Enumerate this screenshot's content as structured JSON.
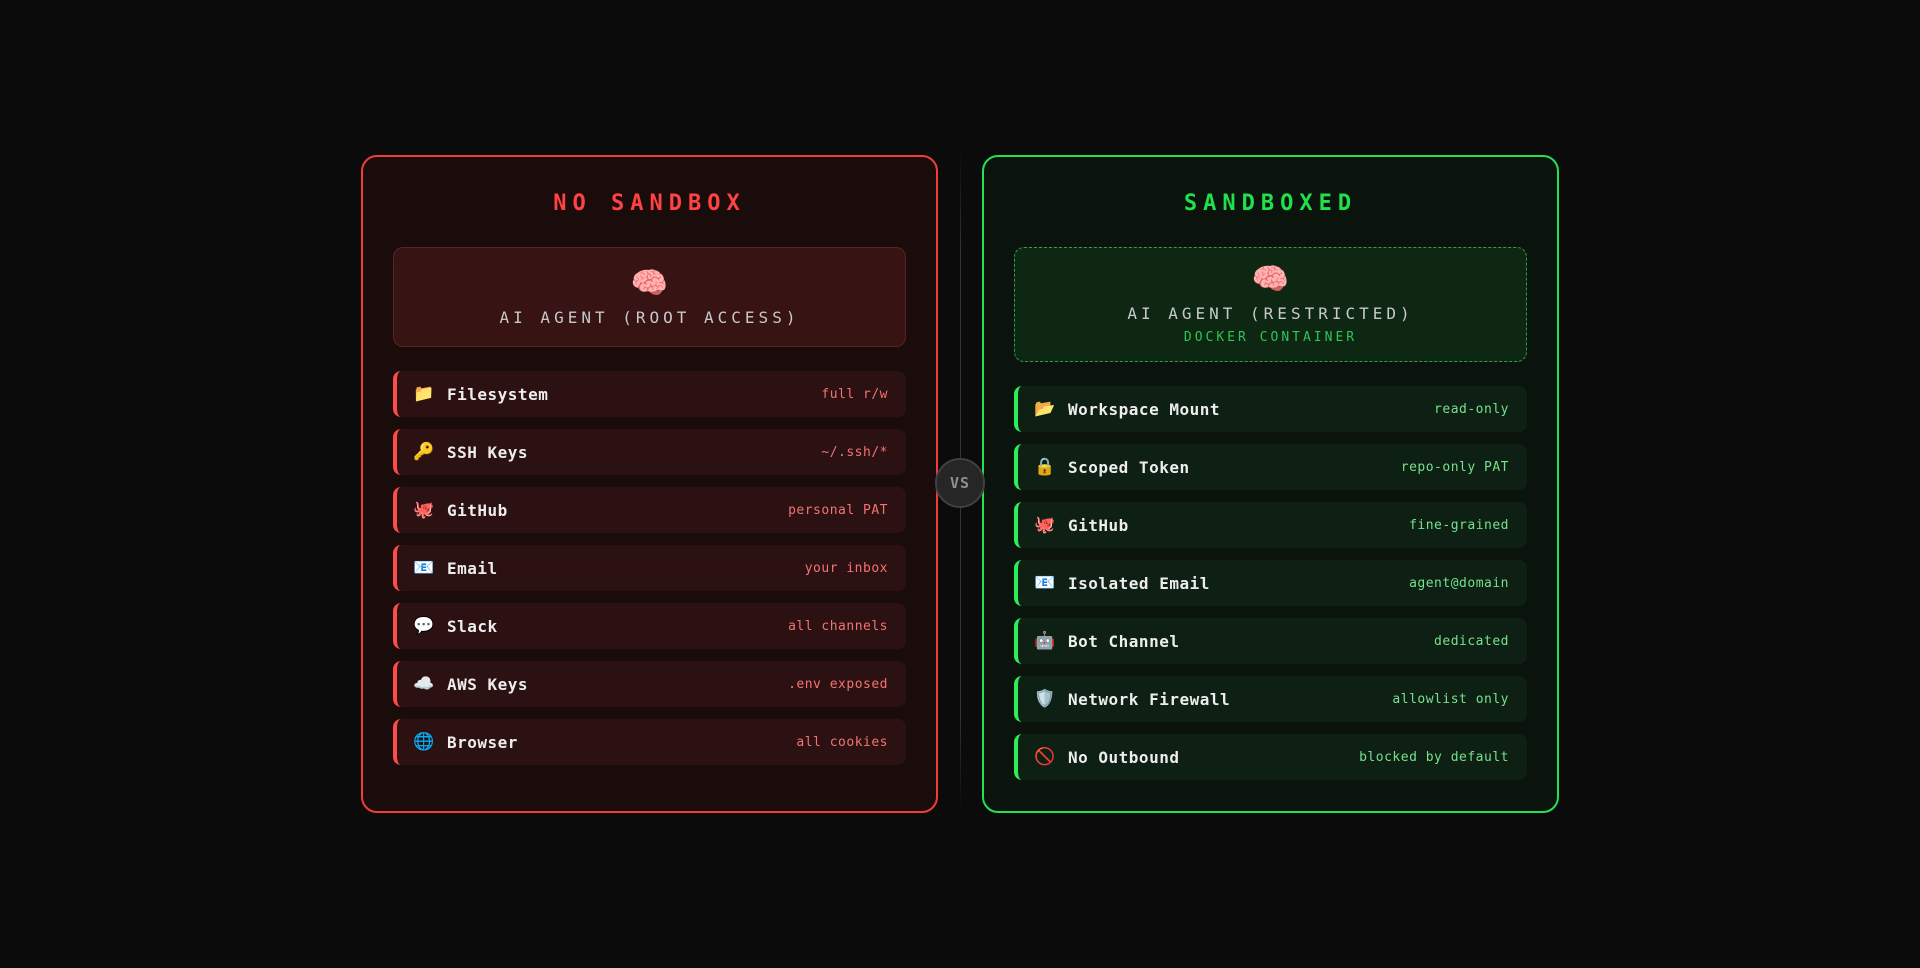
{
  "colors": {
    "page_bg": "#0b0b0b",
    "red_accent": "#f23b3b",
    "red_title": "#ff4242",
    "red_value": "#f57272",
    "green_accent": "#26df52",
    "green_title": "#20e14b",
    "green_value": "#74e18c",
    "vs_text": "#8f8f8f"
  },
  "vs_badge": {
    "label": "VS"
  },
  "panels": {
    "left": {
      "title": "NO SANDBOX",
      "agent": {
        "icon": "🧠",
        "icon_name": "brain-icon",
        "name": "AI AGENT (ROOT ACCESS)"
      },
      "items": [
        {
          "icon": "📁",
          "icon_name": "folder-icon",
          "label": "Filesystem",
          "value": "full r/w"
        },
        {
          "icon": "🔑",
          "icon_name": "key-icon",
          "label": "SSH Keys",
          "value": "~/.ssh/*"
        },
        {
          "icon": "🐙",
          "icon_name": "github-octopus-icon",
          "label": "GitHub",
          "value": "personal PAT"
        },
        {
          "icon": "📧",
          "icon_name": "email-icon",
          "label": "Email",
          "value": "your inbox"
        },
        {
          "icon": "💬",
          "icon_name": "speech-balloon-icon",
          "label": "Slack",
          "value": "all channels"
        },
        {
          "icon": "☁️",
          "icon_name": "cloud-icon",
          "label": "AWS Keys",
          "value": ".env exposed"
        },
        {
          "icon": "🌐",
          "icon_name": "globe-icon",
          "label": "Browser",
          "value": "all cookies"
        }
      ]
    },
    "right": {
      "title": "SANDBOXED",
      "agent": {
        "icon": "🧠",
        "icon_name": "brain-icon",
        "name": "AI AGENT (RESTRICTED)",
        "sub": "DOCKER CONTAINER"
      },
      "items": [
        {
          "icon": "📂",
          "icon_name": "open-folder-icon",
          "label": "Workspace Mount",
          "value": "read-only"
        },
        {
          "icon": "🔒",
          "icon_name": "lock-icon",
          "label": "Scoped Token",
          "value": "repo-only PAT"
        },
        {
          "icon": "🐙",
          "icon_name": "github-octopus-icon",
          "label": "GitHub",
          "value": "fine-grained"
        },
        {
          "icon": "📧",
          "icon_name": "email-icon",
          "label": "Isolated Email",
          "value": "agent@domain"
        },
        {
          "icon": "🤖",
          "icon_name": "robot-icon",
          "label": "Bot Channel",
          "value": "dedicated"
        },
        {
          "icon": "🛡️",
          "icon_name": "shield-icon",
          "label": "Network Firewall",
          "value": "allowlist only"
        },
        {
          "icon": "🚫",
          "icon_name": "no-entry-icon",
          "label": "No Outbound",
          "value": "blocked by default"
        }
      ]
    }
  }
}
